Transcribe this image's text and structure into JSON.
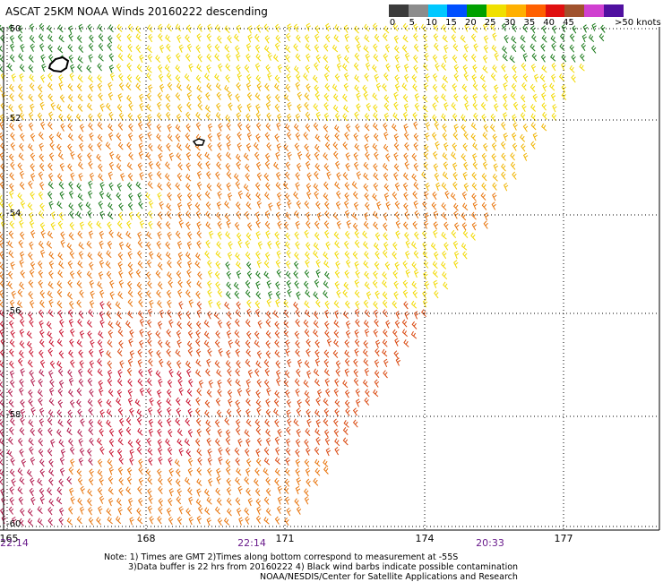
{
  "title": "ASCAT 25KM NOAA Winds 20160222 descending",
  "scale": {
    "labels": [
      "0",
      "5",
      "10",
      "15",
      "20",
      "25",
      "30",
      "35",
      "40",
      "45"
    ],
    "unit": ">50 knots",
    "colors": [
      "#3b3b3b",
      "#8c8c8c",
      "#00c8ff",
      "#0050ff",
      "#00a000",
      "#f0e000",
      "#ffb000",
      "#ff6000",
      "#e01010",
      "#a0522d",
      "#d040d0",
      "#5010a0"
    ]
  },
  "lat_labels": [
    "-50",
    "-52",
    "-54",
    "-56",
    "-58",
    "-60"
  ],
  "lon_labels": [
    "165",
    "168",
    "171",
    "174",
    "177"
  ],
  "time_labels": [
    "22:14",
    "22:14",
    "20:33"
  ],
  "notes": [
    "Note: 1) Times are GMT 2)Times along bottom correspond to measurement at -55S",
    "3)Data buffer is 22 hrs from 20160222 4) Black wind barbs indicate possible contamination",
    "NOAA/NESDIS/Center for Satellite Applications and Research"
  ],
  "colors": {
    "green": "#1a7a1a",
    "yellow": "#f2d900",
    "gold": "#f0b400",
    "orange": "#e8740c",
    "orange_red": "#d9480f",
    "red": "#c8102e",
    "crimson": "#b0154a",
    "grid": "#000000",
    "time_text": "#6a1c8c"
  }
}
